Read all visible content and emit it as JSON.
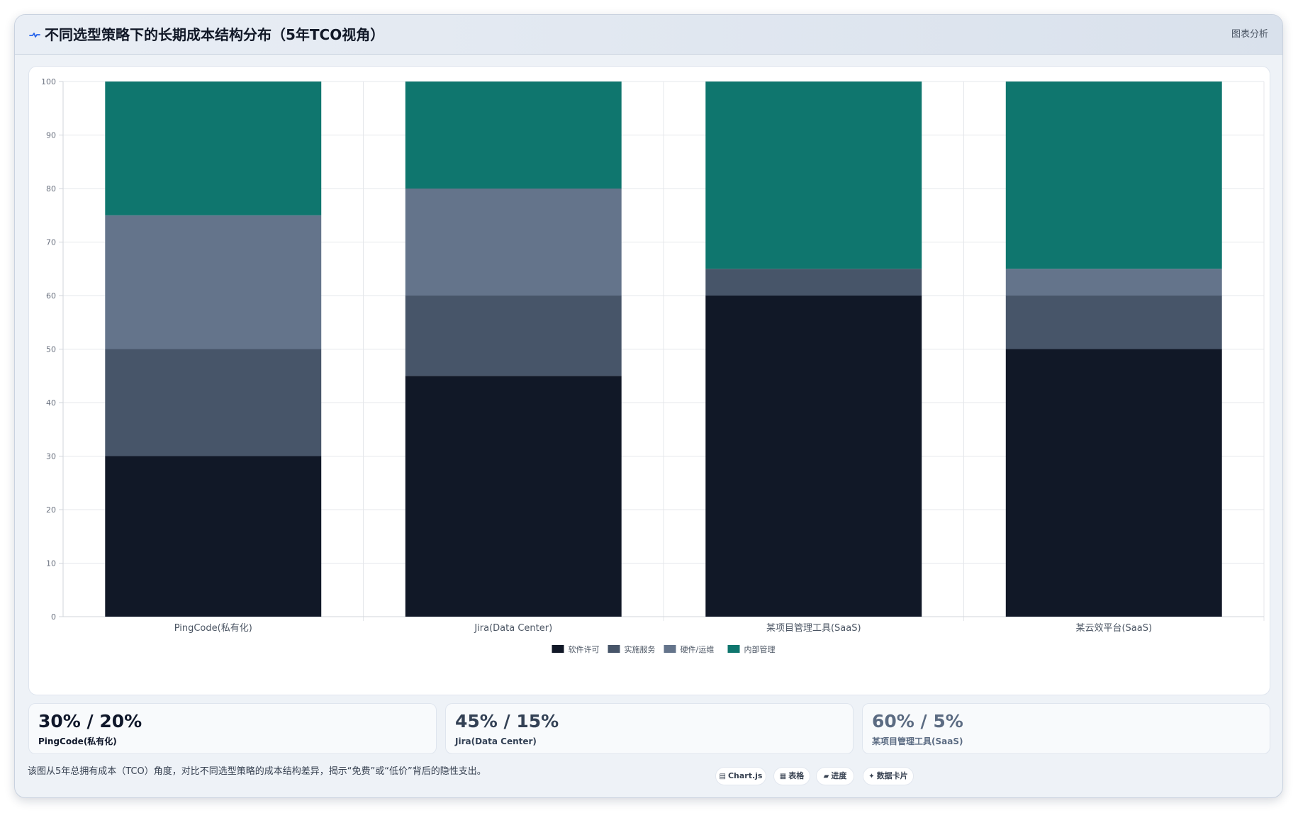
{
  "header": {
    "title": "不同选型策略下的长期成本结构分布（5年TCO视角）",
    "action_label": "图表分析",
    "icon": "pulse-icon"
  },
  "chart_data": {
    "type": "bar",
    "stacked": true,
    "categories": [
      "PingCode(私有化)",
      "Jira(Data Center)",
      "某项目管理工具(SaaS)",
      "某云效平台(SaaS)"
    ],
    "series": [
      {
        "name": "软件许可",
        "color": "#111827",
        "values": [
          30,
          45,
          60,
          50
        ]
      },
      {
        "name": "实施服务",
        "color": "#475569",
        "values": [
          20,
          15,
          5,
          10
        ]
      },
      {
        "name": "硬件/运维",
        "color": "#64748b",
        "values": [
          25,
          20,
          0,
          5
        ]
      },
      {
        "name": "内部管理",
        "color": "#0f766e",
        "values": [
          25,
          20,
          35,
          35
        ]
      }
    ],
    "ylim": [
      0,
      100
    ],
    "yticks": [
      0,
      10,
      20,
      30,
      40,
      50,
      60,
      70,
      80,
      90,
      100
    ],
    "grid": true,
    "legend": "bottom"
  },
  "stats": [
    {
      "value": "30% / 20%",
      "label": "PingCode(私有化)",
      "color": "#0f172a"
    },
    {
      "value": "45% / 15%",
      "label": "Jira(Data Center)",
      "color": "#334155"
    },
    {
      "value": "60% / 5%",
      "label": "某项目管理工具(SaaS)",
      "color": "#5b6b82"
    }
  ],
  "footer": {
    "note": "该图从5年总拥有成本（TCO）角度，对比不同选型策略的成本结构差异，揭示“免费”或“低价”背后的隐性支出。",
    "tags": [
      {
        "glyph": "▤",
        "label": "Chart.js",
        "icon": "chart-icon"
      },
      {
        "glyph": "▦",
        "label": "表格",
        "icon": "table-icon"
      },
      {
        "glyph": "▰",
        "label": "进度",
        "icon": "progress-icon"
      },
      {
        "glyph": "✦",
        "label": "数据卡片",
        "icon": "card-icon"
      }
    ]
  }
}
